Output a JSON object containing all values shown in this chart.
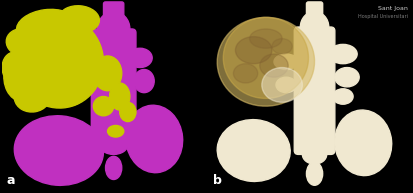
{
  "fig_width": 4.14,
  "fig_height": 1.93,
  "dpi": 100,
  "left_bg": "#9ab8cc",
  "right_bg": "#000000",
  "divider_color": "#ffffff",
  "label_a": "a",
  "label_b": "b",
  "label_color": "#ffffff",
  "label_fontsize": 9,
  "purple": "#c030c0",
  "yellow": "#c8c800",
  "cream_light": "#f0e8d0",
  "cream_mid": "#d8c8a8",
  "cream_dark": "#c0a870",
  "tumor_translucent": "#c8b878",
  "watermark_text": "Sant Joan",
  "watermark_sub": "Hospital Universitari",
  "watermark_fontsize": 4.5
}
